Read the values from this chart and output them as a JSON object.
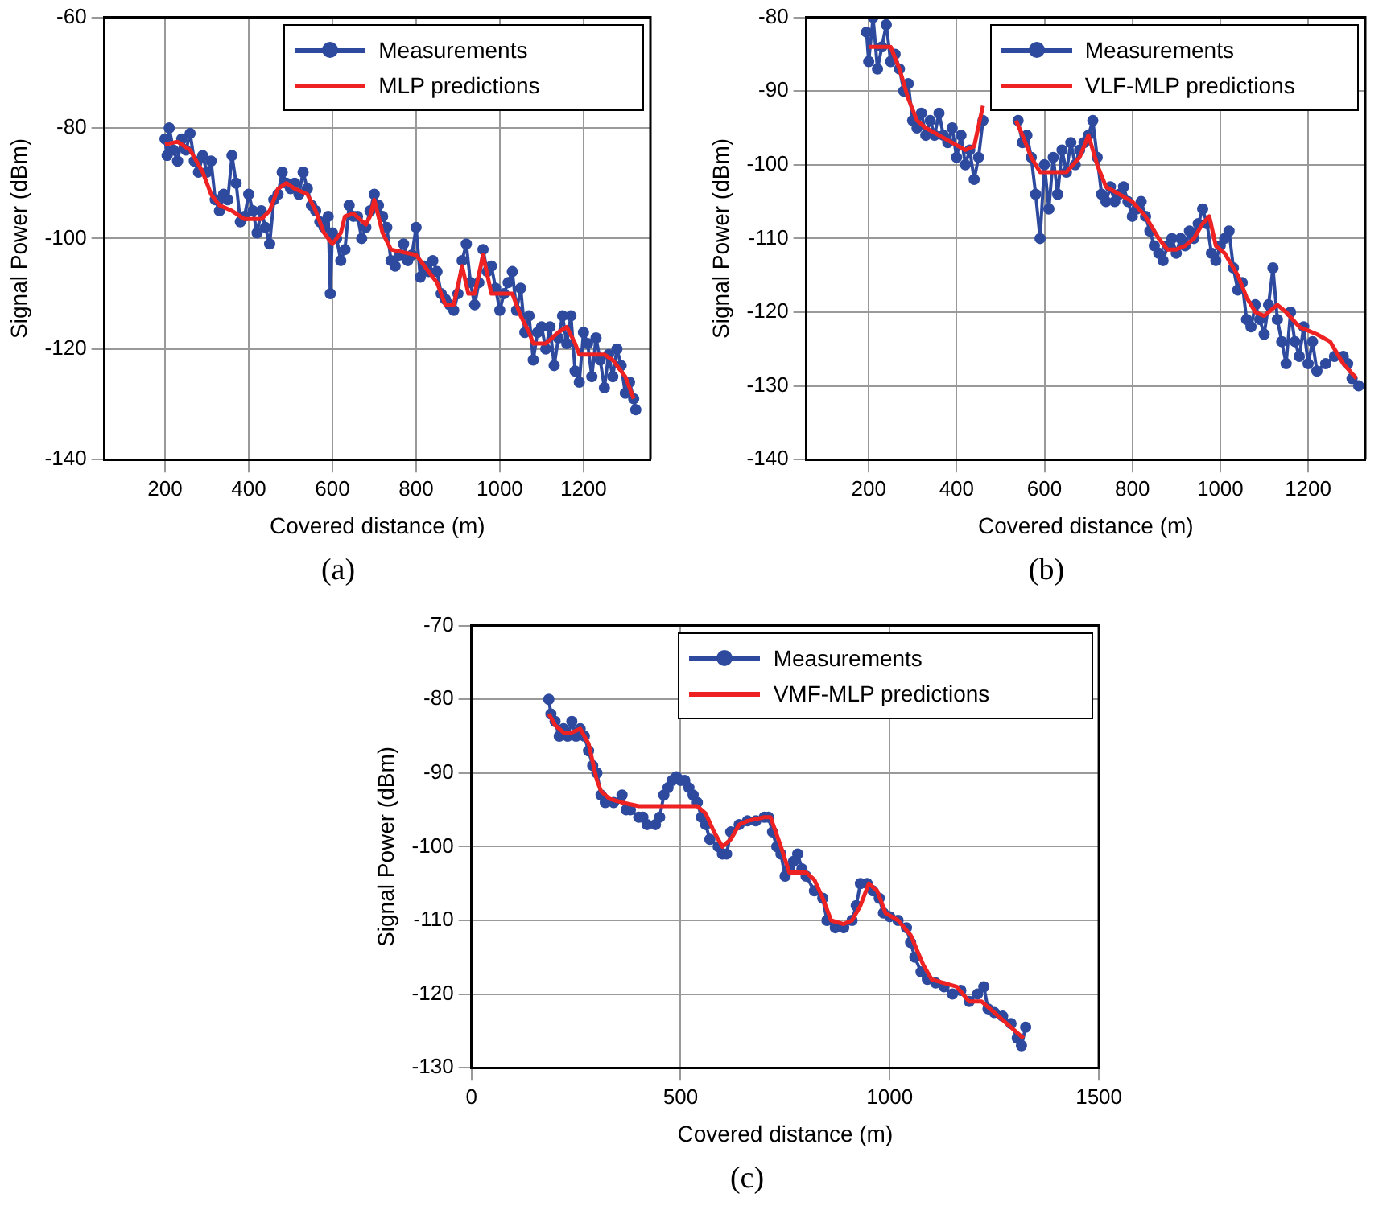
{
  "chart_data": [
    {
      "type": "line",
      "xlabel": "Covered distance (m)",
      "ylabel": "Signal Power (dBm)",
      "annotations": [
        "(a)"
      ],
      "xlim": [
        55,
        1360
      ],
      "xticks": [
        200,
        400,
        600,
        800,
        1000,
        1200
      ],
      "ylim": [
        -140,
        -60
      ],
      "yticks": [
        -140,
        -120,
        -100,
        -80,
        -60
      ],
      "grid": true,
      "legend": "top right",
      "series": [
        {
          "name": "Measurements",
          "color": "#2e4a9e",
          "marker": "circle",
          "x": [
            200,
            205,
            210,
            220,
            230,
            240,
            250,
            260,
            270,
            280,
            290,
            300,
            310,
            320,
            330,
            340,
            350,
            360,
            370,
            380,
            390,
            400,
            410,
            420,
            430,
            440,
            450,
            460,
            470,
            480,
            490,
            500,
            510,
            520,
            530,
            540,
            550,
            560,
            570,
            580,
            590,
            595,
            600,
            610,
            620,
            630,
            640,
            650,
            660,
            670,
            680,
            690,
            700,
            710,
            720,
            730,
            740,
            750,
            760,
            770,
            780,
            790,
            800,
            810,
            820,
            830,
            840,
            850,
            860,
            870,
            880,
            890,
            900,
            910,
            920,
            930,
            940,
            950,
            960,
            970,
            980,
            990,
            1000,
            1010,
            1020,
            1030,
            1040,
            1050,
            1060,
            1070,
            1080,
            1090,
            1100,
            1110,
            1120,
            1130,
            1140,
            1150,
            1160,
            1170,
            1180,
            1190,
            1200,
            1210,
            1220,
            1230,
            1240,
            1250,
            1260,
            1270,
            1280,
            1290,
            1300,
            1310,
            1320,
            1325
          ],
          "values": [
            -82,
            -85,
            -80,
            -84,
            -86,
            -82,
            -84,
            -81,
            -86,
            -88,
            -85,
            -88,
            -86,
            -93,
            -95,
            -92,
            -93,
            -85,
            -90,
            -97,
            -96,
            -92,
            -95,
            -99,
            -95,
            -98,
            -101,
            -93,
            -92,
            -88,
            -90,
            -91,
            -90,
            -92,
            -88,
            -91,
            -94,
            -95,
            -97,
            -98,
            -96,
            -110,
            -99,
            -100,
            -104,
            -102,
            -94,
            -96,
            -96,
            -100,
            -98,
            -95,
            -92,
            -94,
            -96,
            -98,
            -104,
            -105,
            -103,
            -101,
            -104,
            -103,
            -98,
            -107,
            -105,
            -106,
            -104,
            -106,
            -110,
            -111,
            -112,
            -113,
            -110,
            -104,
            -101,
            -108,
            -112,
            -108,
            -102,
            -106,
            -105,
            -109,
            -113,
            -110,
            -108,
            -106,
            -113,
            -109,
            -117,
            -114,
            -122,
            -117,
            -116,
            -120,
            -116,
            -123,
            -118,
            -114,
            -119,
            -114,
            -124,
            -126,
            -117,
            -119,
            -125,
            -118,
            -122,
            -127,
            -121,
            -125,
            -120,
            -123,
            -128,
            -126,
            -129,
            -131
          ]
        },
        {
          "name": "MLP predictions",
          "color": "#ee2222",
          "marker": "none",
          "x": [
            200,
            230,
            260,
            290,
            310,
            330,
            360,
            390,
            430,
            450,
            470,
            490,
            510,
            540,
            560,
            580,
            600,
            620,
            630,
            650,
            680,
            690,
            700,
            710,
            720,
            740,
            770,
            800,
            830,
            850,
            870,
            890,
            910,
            925,
            940,
            960,
            980,
            1000,
            1030,
            1050,
            1070,
            1080,
            1110,
            1140,
            1160,
            1180,
            1190,
            1220,
            1250,
            1270,
            1300,
            1320
          ],
          "values": [
            -83,
            -82.5,
            -84,
            -88,
            -92,
            -94,
            -95,
            -96.5,
            -96.5,
            -95,
            -91,
            -90,
            -91,
            -92,
            -95,
            -99,
            -101,
            -99,
            -96,
            -95.5,
            -97.5,
            -96,
            -93,
            -96,
            -99,
            -102,
            -102.5,
            -103,
            -106,
            -108,
            -112,
            -112,
            -105,
            -110,
            -110,
            -103,
            -110,
            -110,
            -110,
            -114,
            -117,
            -119,
            -119,
            -117,
            -116,
            -119,
            -121,
            -121,
            -121,
            -122,
            -125,
            -129
          ]
        }
      ]
    },
    {
      "type": "line",
      "xlabel": "Covered distance (m)",
      "ylabel": "Signal Power (dBm)",
      "annotations": [
        "(b)"
      ],
      "xlim": [
        58,
        1330
      ],
      "xticks": [
        200,
        400,
        600,
        800,
        1000,
        1200
      ],
      "ylim": [
        -140,
        -80
      ],
      "yticks": [
        -140,
        -130,
        -120,
        -110,
        -100,
        -90,
        -80
      ],
      "grid": true,
      "legend": "top right",
      "series": [
        {
          "name": "Measurements",
          "color": "#2e4a9e",
          "marker": "circle",
          "x": [
            195,
            200,
            210,
            220,
            230,
            240,
            250,
            260,
            270,
            280,
            290,
            300,
            310,
            320,
            330,
            340,
            350,
            360,
            370,
            380,
            390,
            400,
            410,
            420,
            430,
            440,
            450,
            460,
            500,
            540,
            550,
            560,
            570,
            580,
            590,
            600,
            610,
            620,
            630,
            640,
            650,
            660,
            670,
            680,
            690,
            700,
            710,
            720,
            730,
            740,
            750,
            760,
            770,
            780,
            790,
            800,
            810,
            820,
            830,
            840,
            850,
            860,
            870,
            880,
            890,
            900,
            910,
            920,
            930,
            940,
            950,
            960,
            970,
            980,
            990,
            1000,
            1010,
            1020,
            1030,
            1040,
            1050,
            1060,
            1070,
            1080,
            1090,
            1100,
            1110,
            1120,
            1130,
            1140,
            1150,
            1160,
            1170,
            1180,
            1190,
            1200,
            1210,
            1220,
            1240,
            1260,
            1280,
            1290,
            1300,
            1315
          ],
          "values": [
            -82,
            -86,
            -80,
            -87,
            -84,
            -81,
            -86,
            -85,
            -87,
            -90,
            -89,
            -94,
            -95,
            -93,
            -96,
            -94,
            -96,
            -93,
            -96,
            -97,
            -95,
            -99,
            -96,
            -100,
            -98,
            -102,
            -99,
            -94,
            null,
            -94,
            -97,
            -96,
            -99,
            -104,
            -110,
            -100,
            -106,
            -99,
            -104,
            -98,
            -101,
            -97,
            -100,
            -98,
            -97,
            -96,
            -94,
            -99,
            -104,
            -105,
            -103,
            -105,
            -104,
            -103,
            -105,
            -107,
            -106,
            -105,
            -107,
            -109,
            -111,
            -112,
            -113,
            -111,
            -110,
            -112,
            -110,
            -111,
            -109,
            -110,
            -108,
            -106,
            -108,
            -112,
            -113,
            -111,
            -110,
            -109,
            -114,
            -117,
            -116,
            -121,
            -122,
            -119,
            -121,
            -123,
            -119,
            -114,
            -121,
            -124,
            -127,
            -120,
            -124,
            -126,
            -122,
            -127,
            -124,
            -128,
            -127,
            -126,
            -126,
            -127,
            -129,
            -130
          ]
        },
        {
          "name": "VLF-MLP predictions",
          "color": "#ee2222",
          "marker": "none",
          "x": [
            200,
            250,
            270,
            290,
            310,
            330,
            360,
            390,
            420,
            440,
            460,
            500,
            535,
            550,
            570,
            590,
            650,
            680,
            700,
            720,
            740,
            770,
            800,
            830,
            860,
            880,
            900,
            920,
            940,
            960,
            975,
            990,
            1010,
            1040,
            1060,
            1080,
            1100,
            1130,
            1150,
            1180,
            1220,
            1250,
            1280,
            1310
          ],
          "values": [
            -84,
            -84,
            -87,
            -91,
            -94,
            -95,
            -96,
            -97,
            -98,
            -97.5,
            -92,
            null,
            -94,
            -96,
            -99,
            -101,
            -101,
            -99,
            -96,
            -100,
            -103,
            -104,
            -105,
            -107,
            -110,
            -111.5,
            -111.5,
            -111,
            -110,
            -108,
            -107,
            -111,
            -112,
            -115,
            -118,
            -120,
            -120.5,
            -119,
            -120,
            -122,
            -123,
            -124,
            -127,
            -129
          ]
        }
      ]
    },
    {
      "type": "line",
      "xlabel": "Covered distance (m)",
      "ylabel": "Signal Power (dBm)",
      "annotations": [
        "(c)"
      ],
      "xlim": [
        0,
        1500
      ],
      "xticks": [
        0,
        500,
        1000,
        1500
      ],
      "ylim": [
        -130,
        -70
      ],
      "yticks": [
        -130,
        -120,
        -110,
        -100,
        -90,
        -80,
        -70
      ],
      "grid": true,
      "legend": "top right",
      "series": [
        {
          "name": "Measurements",
          "color": "#2e4a9e",
          "marker": "circle",
          "x": [
            185,
            190,
            200,
            210,
            220,
            230,
            240,
            250,
            260,
            270,
            280,
            290,
            300,
            310,
            320,
            340,
            360,
            370,
            380,
            400,
            410,
            420,
            440,
            450,
            460,
            470,
            480,
            490,
            500,
            510,
            520,
            530,
            540,
            550,
            560,
            570,
            590,
            600,
            610,
            620,
            640,
            660,
            680,
            700,
            710,
            720,
            730,
            740,
            750,
            760,
            770,
            780,
            790,
            800,
            820,
            840,
            850,
            870,
            890,
            910,
            920,
            930,
            946,
            960,
            975,
            985,
            1000,
            1020,
            1040,
            1050,
            1060,
            1075,
            1090,
            1110,
            1130,
            1150,
            1170,
            1190,
            1210,
            1225,
            1235,
            1250,
            1270,
            1290,
            1305,
            1315,
            1325
          ],
          "values": [
            -80,
            -82,
            -83,
            -85,
            -84,
            -85,
            -83,
            -85,
            -84,
            -85,
            -87,
            -89,
            -90,
            -93,
            -94,
            -94,
            -93,
            -95,
            -95,
            -96,
            -96,
            -97,
            -97,
            -96,
            -93,
            -92,
            -91,
            -90.5,
            -91,
            -91,
            -92,
            -93,
            -94,
            -96,
            -97,
            -99,
            -100,
            -101,
            -101,
            -98,
            -97,
            -96.5,
            -96.5,
            -96,
            -96,
            -98,
            -100,
            -101,
            -104,
            -103,
            -102,
            -101,
            -103,
            -104,
            -106,
            -107,
            -110,
            -111,
            -111,
            -110,
            -108,
            -105,
            -105,
            -106,
            -107,
            -109,
            -109.5,
            -110,
            -111,
            -113,
            -115,
            -117,
            -118,
            -118.5,
            -119,
            -120,
            -119.5,
            -121,
            -120,
            -119,
            -122,
            -122.5,
            -123,
            -124,
            -126,
            -127,
            -124.5
          ]
        },
        {
          "name": "VMF-MLP predictions",
          "color": "#ee2222",
          "marker": "none",
          "x": [
            185,
            200,
            220,
            240,
            260,
            280,
            300,
            310,
            330,
            360,
            400,
            500,
            540,
            560,
            580,
            600,
            620,
            640,
            660,
            700,
            715,
            740,
            760,
            800,
            820,
            840,
            860,
            890,
            910,
            930,
            950,
            970,
            990,
            1020,
            1050,
            1080,
            1100,
            1130,
            1160,
            1190,
            1220,
            1260,
            1290,
            1320
          ],
          "values": [
            -82,
            -83.5,
            -84.5,
            -84.5,
            -84,
            -86,
            -91,
            -92.5,
            -93.5,
            -94,
            -94.5,
            -94.5,
            -94.5,
            -95.5,
            -98,
            -100,
            -99,
            -97,
            -96.5,
            -96,
            -96,
            -100,
            -103.5,
            -103.5,
            -104.5,
            -107,
            -110,
            -110.5,
            -110,
            -108,
            -105,
            -106,
            -109,
            -110,
            -112,
            -116,
            -118,
            -118.5,
            -119,
            -121,
            -121,
            -123,
            -124.5,
            -126
          ]
        }
      ]
    }
  ]
}
